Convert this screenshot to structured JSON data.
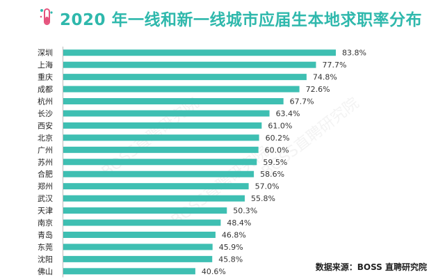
{
  "title": "2020 年一线和新一线城市应届生本地求职率分布",
  "source": "数据来源：BOSS 直聘研究院",
  "watermark": "BOSS直聘研究院",
  "colors": {
    "bar": "#3ebfb2",
    "title": "#2fb8ac",
    "logo_flask": "#e5537d"
  },
  "chart_data": {
    "type": "bar",
    "orientation": "horizontal",
    "categories": [
      "深圳",
      "上海",
      "重庆",
      "成都",
      "杭州",
      "长沙",
      "西安",
      "北京",
      "广州",
      "苏州",
      "合肥",
      "郑州",
      "武汉",
      "天津",
      "南京",
      "青岛",
      "东莞",
      "沈阳",
      "佛山"
    ],
    "values": [
      83.8,
      77.7,
      74.8,
      72.6,
      67.7,
      63.4,
      61.0,
      60.2,
      60.0,
      59.5,
      58.6,
      57.0,
      55.8,
      50.3,
      48.4,
      46.8,
      45.9,
      45.8,
      40.6
    ],
    "labels": [
      "83.8%",
      "77.7%",
      "74.8%",
      "72.6%",
      "67.7%",
      "63.4%",
      "61.0%",
      "60.2%",
      "60.0%",
      "59.5%",
      "58.6%",
      "57.0%",
      "55.8%",
      "50.3%",
      "48.4%",
      "46.8%",
      "45.9%",
      "45.8%",
      "40.6%"
    ],
    "unit": "%",
    "grid": false
  }
}
